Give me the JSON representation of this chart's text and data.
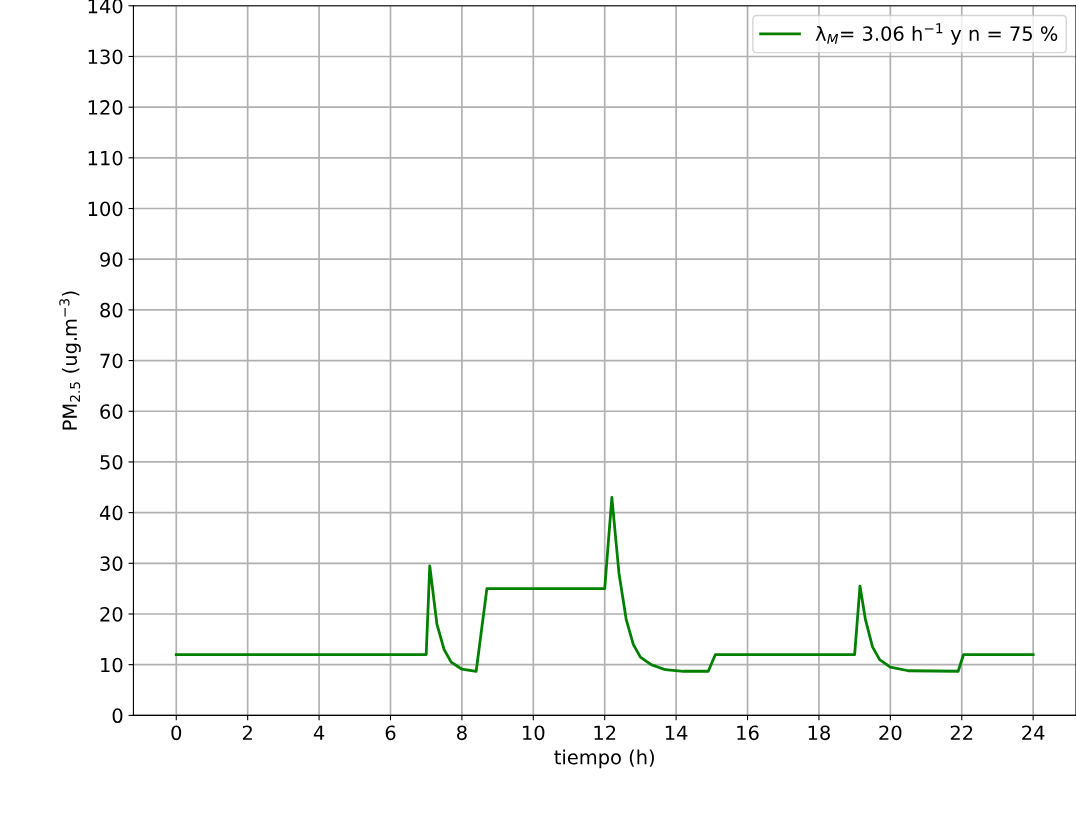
{
  "chart_data": {
    "type": "line",
    "xlabel": "tiempo (h)",
    "ylabel": "PM$_{2.5}$ (ug.m$^{−3}$)",
    "xlim": [
      -1.2,
      25.2
    ],
    "xticks": [
      0,
      2,
      4,
      6,
      8,
      10,
      12,
      14,
      16,
      18,
      20,
      22,
      24
    ],
    "ylim": [
      0,
      140
    ],
    "yticks": [
      0,
      10,
      20,
      30,
      40,
      50,
      60,
      70,
      80,
      90,
      100,
      110,
      120,
      130,
      140
    ],
    "grid": true,
    "legend": "top right",
    "marker": "none",
    "line_style": "solid",
    "series": [
      {
        "name": "λ$_{M}$= 3.06 h$^{−1}$ y n = 75 %",
        "color": "#008000",
        "x": [
          0,
          7.0,
          7.1,
          7.3,
          7.5,
          7.7,
          8.0,
          8.4,
          8.7,
          12.0,
          12.2,
          12.4,
          12.6,
          12.8,
          13.0,
          13.3,
          13.7,
          14.2,
          14.9,
          15.1,
          19.0,
          19.15,
          19.3,
          19.5,
          19.7,
          20.0,
          20.5,
          21.9,
          22.05,
          24
        ],
        "values": [
          12,
          12,
          29.5,
          18,
          13,
          10.5,
          9.1,
          8.7,
          25,
          25,
          43,
          28,
          19,
          14,
          11.5,
          10,
          9,
          8.7,
          8.7,
          12,
          12,
          25.5,
          19,
          13.5,
          11,
          9.5,
          8.8,
          8.7,
          12,
          12
        ]
      }
    ]
  }
}
